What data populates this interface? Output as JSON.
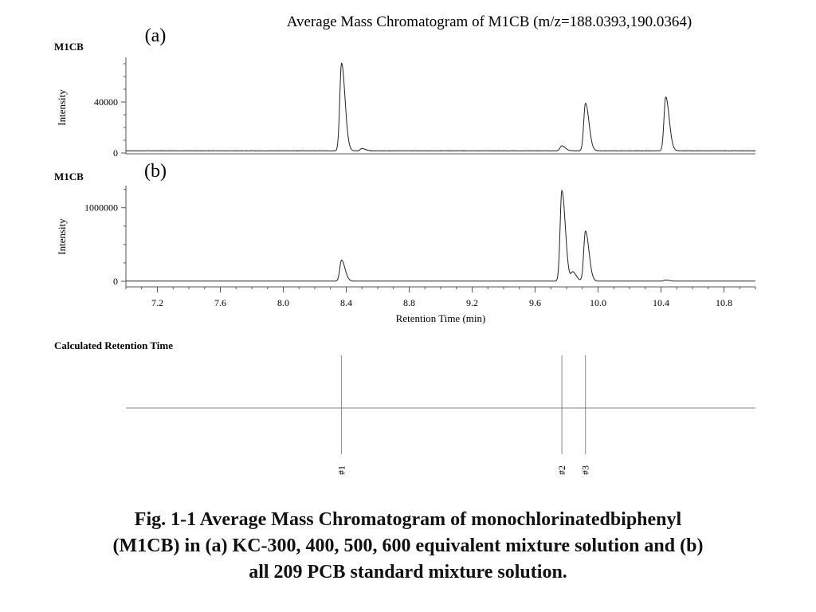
{
  "figure": {
    "title": "Average Mass Chromatogram of M1CB (m/z=188.0393,190.0364)",
    "caption_lines": [
      "Fig. 1-1  Average Mass Chromatogram of monochlorinatedbiphenyl",
      "(M1CB) in (a) KC-300, 400, 500, 600 equivalent mixture solution and (b)",
      "all 209 PCB standard mixture solution."
    ]
  },
  "chart_data": [
    {
      "type": "line",
      "panel_label": "(a)",
      "series_label": "M1CB",
      "ylabel": "Intensity",
      "yticks": [
        0,
        40000
      ],
      "ylim": [
        0,
        75000
      ],
      "xlim": [
        7.0,
        11.0
      ],
      "baseline": 500,
      "noise": 250,
      "peaks": [
        {
          "rt": 8.37,
          "height": 70000
        },
        {
          "rt": 8.5,
          "height": 1800
        },
        {
          "rt": 9.77,
          "height": 4000
        },
        {
          "rt": 9.92,
          "height": 38000
        },
        {
          "rt": 10.43,
          "height": 43000
        }
      ]
    },
    {
      "type": "line",
      "panel_label": "(b)",
      "series_label": "M1CB",
      "ylabel": "Intensity",
      "yticks": [
        0,
        1000000
      ],
      "ylim": [
        0,
        1300000
      ],
      "xlim": [
        7.0,
        11.0
      ],
      "xticks": [
        7.2,
        7.6,
        8.0,
        8.4,
        8.8,
        9.2,
        9.6,
        10.0,
        10.4,
        10.8
      ],
      "xtick_labels": [
        "7.2",
        "7.6",
        "8.0",
        "8.4",
        "8.8",
        "9.2",
        "9.6",
        "10.0",
        "10.4",
        "10.8"
      ],
      "xlabel": "Retention Time (min)",
      "baseline": 3000,
      "noise": 1500,
      "peaks": [
        {
          "rt": 8.37,
          "height": 285000
        },
        {
          "rt": 9.77,
          "height": 1230000
        },
        {
          "rt": 9.84,
          "height": 120000
        },
        {
          "rt": 9.92,
          "height": 680000
        },
        {
          "rt": 10.43,
          "height": 15000
        }
      ]
    },
    {
      "type": "line",
      "title": "Calculated Retention Time",
      "xlim": [
        7.0,
        11.0
      ],
      "markers": [
        {
          "label": "#1",
          "rt": 8.37
        },
        {
          "label": "#2",
          "rt": 9.77
        },
        {
          "label": "#3",
          "rt": 9.92
        }
      ]
    }
  ]
}
